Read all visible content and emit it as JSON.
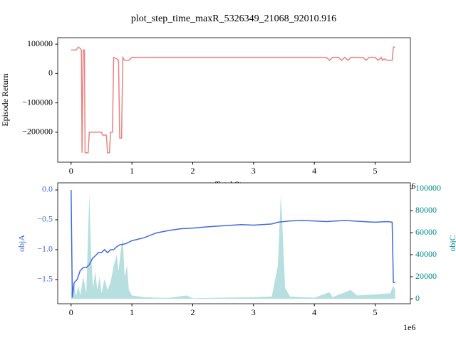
{
  "title": "plot_step_time_maxR_5326349_21068_92010.916",
  "chart_data": [
    {
      "type": "line",
      "y_label": "Episode Return",
      "x_label": "Total Steps",
      "x_offset_label": "1e6",
      "xlim": [
        -220000,
        5580000
      ],
      "ylim": [
        -302000,
        122000
      ],
      "xticks": [
        {
          "value": 0,
          "label": "0"
        },
        {
          "value": 1000000,
          "label": "1"
        },
        {
          "value": 2000000,
          "label": "2"
        },
        {
          "value": 3000000,
          "label": "3"
        },
        {
          "value": 4000000,
          "label": "4"
        },
        {
          "value": 5000000,
          "label": "5"
        }
      ],
      "yticks": [
        {
          "value": -200000,
          "label": "−200000"
        },
        {
          "value": -100000,
          "label": "−100000"
        },
        0,
        100000
      ],
      "series": [
        {
          "color": "#e98383",
          "x": [
            0,
            80000,
            120000,
            150000,
            170000,
            180000,
            200000,
            220000,
            230000,
            280000,
            300000,
            500000,
            520000,
            580000,
            600000,
            630000,
            650000,
            680000,
            700000,
            750000,
            780000,
            800000,
            830000,
            850000,
            880000,
            950000,
            1000000,
            4200000,
            4250000,
            4300000,
            4400000,
            4450000,
            4500000,
            4550000,
            4600000,
            4800000,
            4850000,
            4900000,
            5000000,
            5050000,
            5100000,
            5120000,
            5150000,
            5200000,
            5280000,
            5300000,
            5330000
          ],
          "values": [
            80000,
            80000,
            90000,
            85000,
            80000,
            -270000,
            80000,
            80000,
            -270000,
            -270000,
            -200000,
            -200000,
            -210000,
            -210000,
            -270000,
            -270000,
            -200000,
            -200000,
            55000,
            50000,
            45000,
            -220000,
            -220000,
            55000,
            45000,
            45000,
            55000,
            55000,
            45000,
            55000,
            55000,
            45000,
            55000,
            45000,
            55000,
            55000,
            45000,
            55000,
            55000,
            45000,
            55000,
            45000,
            50000,
            45000,
            45000,
            90000,
            90000
          ]
        }
      ]
    },
    {
      "type": "line",
      "x_offset_label": "1e6",
      "xlim": [
        -220000,
        5580000
      ],
      "ylim": [
        -1.905,
        0.119
      ],
      "y2lim": [
        -4500,
        105200
      ],
      "xticks": [
        {
          "value": 0,
          "label": "0"
        },
        {
          "value": 1000000,
          "label": "1"
        },
        {
          "value": 2000000,
          "label": "2"
        },
        {
          "value": 3000000,
          "label": "3"
        },
        {
          "value": 4000000,
          "label": "4"
        },
        {
          "value": 5000000,
          "label": "5"
        }
      ],
      "yticks": [
        {
          "value": -1.5,
          "label": "−1.5"
        },
        {
          "value": -1.0,
          "label": "−1.0"
        },
        {
          "value": -0.5,
          "label": "−0.5"
        },
        {
          "value": 0,
          "label": "0.0"
        }
      ],
      "y2ticks": [
        0,
        20000,
        40000,
        60000,
        80000,
        100000
      ],
      "series": [
        {
          "name": "objA",
          "color": "#4169e1",
          "x": [
            0,
            20000,
            50000,
            100000,
            150000,
            200000,
            250000,
            300000,
            350000,
            400000,
            450000,
            500000,
            550000,
            600000,
            650000,
            700000,
            750000,
            800000,
            900000,
            1000000,
            1200000,
            1400000,
            1600000,
            1800000,
            2000000,
            2200000,
            2500000,
            2800000,
            3000000,
            3300000,
            3400000,
            3600000,
            3800000,
            4000000,
            4200000,
            4500000,
            4800000,
            5000000,
            5200000,
            5280000,
            5300000,
            5330000
          ],
          "values": [
            0.0,
            -1.8,
            -1.55,
            -1.5,
            -1.35,
            -1.3,
            -1.3,
            -1.25,
            -1.15,
            -1.1,
            -1.05,
            -1.05,
            -1.0,
            -1.05,
            -1.0,
            -1.0,
            -0.95,
            -0.92,
            -0.9,
            -0.85,
            -0.8,
            -0.72,
            -0.68,
            -0.65,
            -0.64,
            -0.62,
            -0.6,
            -0.58,
            -0.59,
            -0.57,
            -0.54,
            -0.52,
            -0.51,
            -0.52,
            -0.53,
            -0.51,
            -0.53,
            -0.54,
            -0.53,
            -0.54,
            -1.55,
            -1.55
          ]
        },
        {
          "name": "objC",
          "color": "#008b8b",
          "fill_color": "#b7dfdf",
          "axis": "y2",
          "fill": true,
          "x": [
            0,
            50000,
            80000,
            120000,
            150000,
            200000,
            250000,
            280000,
            300000,
            330000,
            360000,
            400000,
            430000,
            470000,
            500000,
            550000,
            600000,
            650000,
            700000,
            750000,
            780000,
            820000,
            850000,
            880000,
            920000,
            950000,
            1000000,
            1200000,
            1400000,
            1600000,
            1900000,
            2000000,
            2500000,
            3000000,
            3300000,
            3400000,
            3450000,
            3480000,
            3520000,
            3600000,
            4000000,
            4250000,
            4300000,
            4600000,
            4700000,
            5000000,
            5250000,
            5300000,
            5330000
          ],
          "values": [
            5000,
            15000,
            2000,
            12000,
            3000,
            20000,
            5000,
            60000,
            95000,
            40000,
            10000,
            25000,
            8000,
            20000,
            5000,
            18000,
            8000,
            15000,
            30000,
            40000,
            25000,
            45000,
            55000,
            20000,
            30000,
            8000,
            3000,
            1500,
            1000,
            800,
            3000,
            500,
            1000,
            1500,
            2000,
            30000,
            95000,
            60000,
            10000,
            2000,
            1000,
            6000,
            1500,
            8000,
            3000,
            4000,
            5000,
            12000,
            8000
          ]
        }
      ]
    }
  ]
}
